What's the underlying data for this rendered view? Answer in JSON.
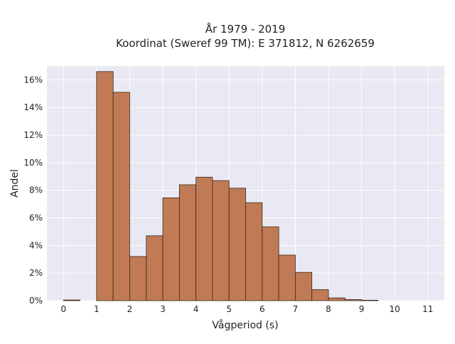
{
  "chart_data": {
    "type": "bar",
    "title": "År 1979 - 2019",
    "subtitle": "Koordinat (Sweref 99 TM): E 371812, N 6262659",
    "xlabel": "Vågperiod (s)",
    "ylabel": "Andel",
    "xlim": [
      -0.5,
      11.5
    ],
    "ylim": [
      0,
      17
    ],
    "x_ticks": [
      0,
      1,
      2,
      3,
      4,
      5,
      6,
      7,
      8,
      9,
      10,
      11
    ],
    "y_ticks": [
      0,
      2,
      4,
      6,
      8,
      10,
      12,
      14,
      16
    ],
    "y_tick_suffix": "%",
    "bin_width": 0.5,
    "bins": [
      {
        "start": 0.0,
        "value": 0.05
      },
      {
        "start": 1.0,
        "value": 16.6
      },
      {
        "start": 1.5,
        "value": 15.1
      },
      {
        "start": 2.0,
        "value": 3.2
      },
      {
        "start": 2.5,
        "value": 4.7
      },
      {
        "start": 3.0,
        "value": 7.45
      },
      {
        "start": 3.5,
        "value": 8.4
      },
      {
        "start": 4.0,
        "value": 8.95
      },
      {
        "start": 4.5,
        "value": 8.7
      },
      {
        "start": 5.0,
        "value": 8.15
      },
      {
        "start": 5.5,
        "value": 7.1
      },
      {
        "start": 6.0,
        "value": 5.35
      },
      {
        "start": 6.5,
        "value": 3.3
      },
      {
        "start": 7.0,
        "value": 2.05
      },
      {
        "start": 7.5,
        "value": 0.8
      },
      {
        "start": 8.0,
        "value": 0.2
      },
      {
        "start": 8.5,
        "value": 0.08
      },
      {
        "start": 9.0,
        "value": 0.03
      }
    ],
    "grid": true,
    "colors": {
      "bar_fill": "#c07b56",
      "bar_edge": "#3b2518",
      "plot_background": "#e8e9f2",
      "grid_line": "#ffffff"
    }
  }
}
